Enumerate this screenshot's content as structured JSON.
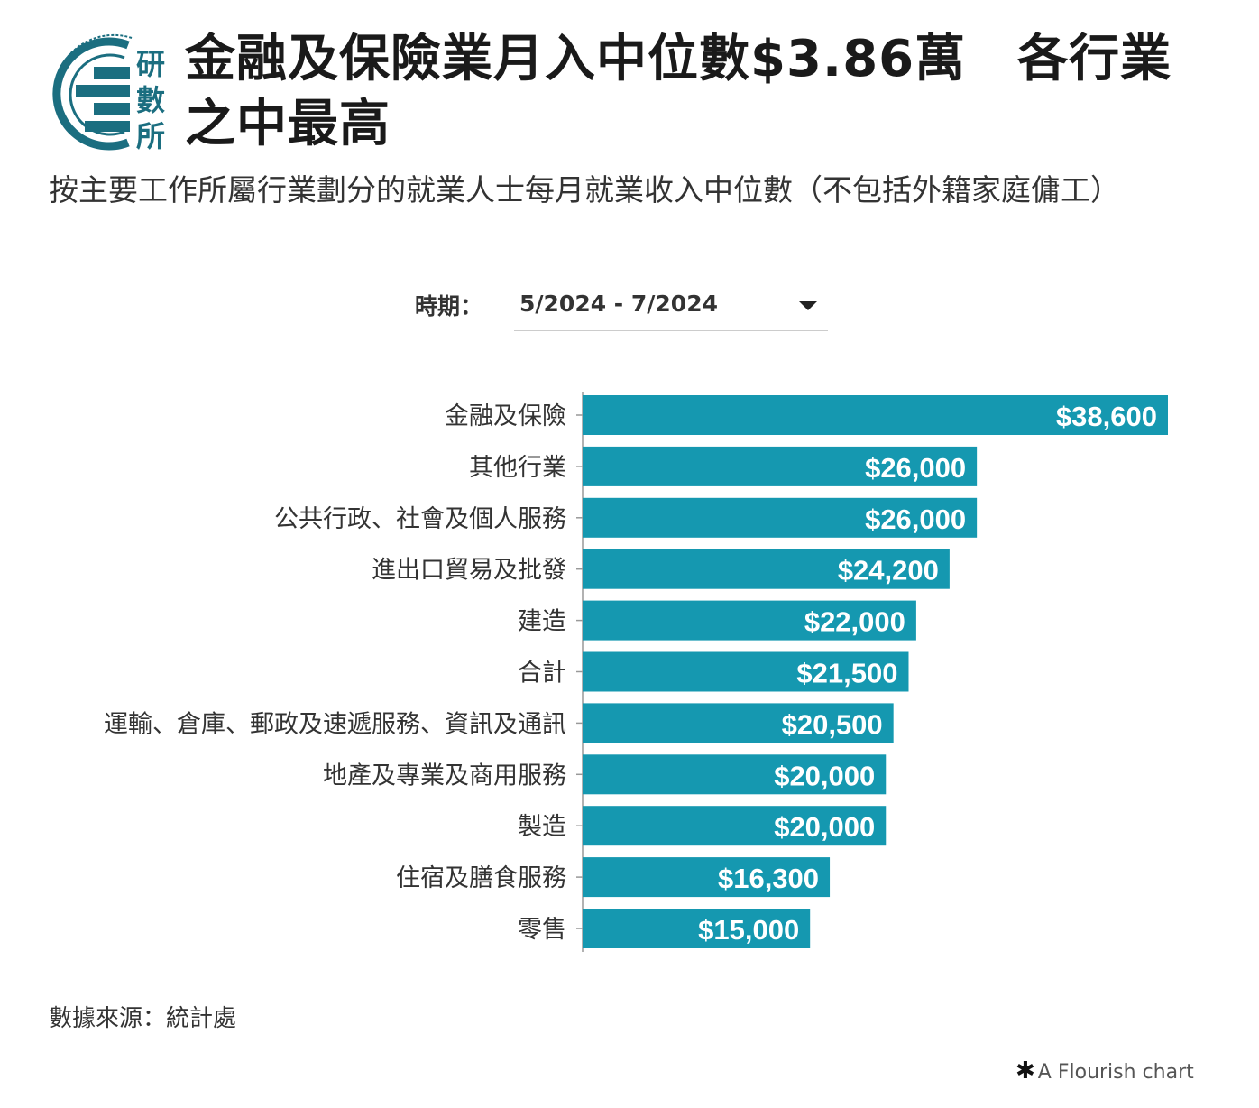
{
  "header": {
    "logo_text": "研數所",
    "title": "金融及保險業月入中位數$3.86萬　各行業之中最高",
    "subtitle": "按主要工作所屬行業劃分的就業人士每月就業收入中位數（不包括外籍家庭傭工）"
  },
  "controls": {
    "period_label": "時期：",
    "period_value": "5/2024 - 7/2024"
  },
  "chart_data": {
    "type": "bar",
    "orientation": "horizontal",
    "categories": [
      "金融及保險",
      "其他行業",
      "公共行政、社會及個人服務",
      "進出口貿易及批發",
      "建造",
      "合計",
      "運輸、倉庫、郵政及速遞服務、資訊及通訊",
      "地產及專業及商用服務",
      "製造",
      "住宿及膳食服務",
      "零售"
    ],
    "values": [
      38600,
      26000,
      26000,
      24200,
      22000,
      21500,
      20500,
      20000,
      20000,
      16300,
      15000
    ],
    "data_labels": [
      "$38,600",
      "$26,000",
      "$26,000",
      "$24,200",
      "$22,000",
      "$21,500",
      "$20,500",
      "$20,000",
      "$20,000",
      "$16,300",
      "$15,000"
    ],
    "xlim": [
      0,
      38600
    ],
    "grid": false,
    "bar_color": "#1598b0"
  },
  "footer": {
    "source": "數據來源：統計處",
    "credit": "A Flourish chart"
  }
}
